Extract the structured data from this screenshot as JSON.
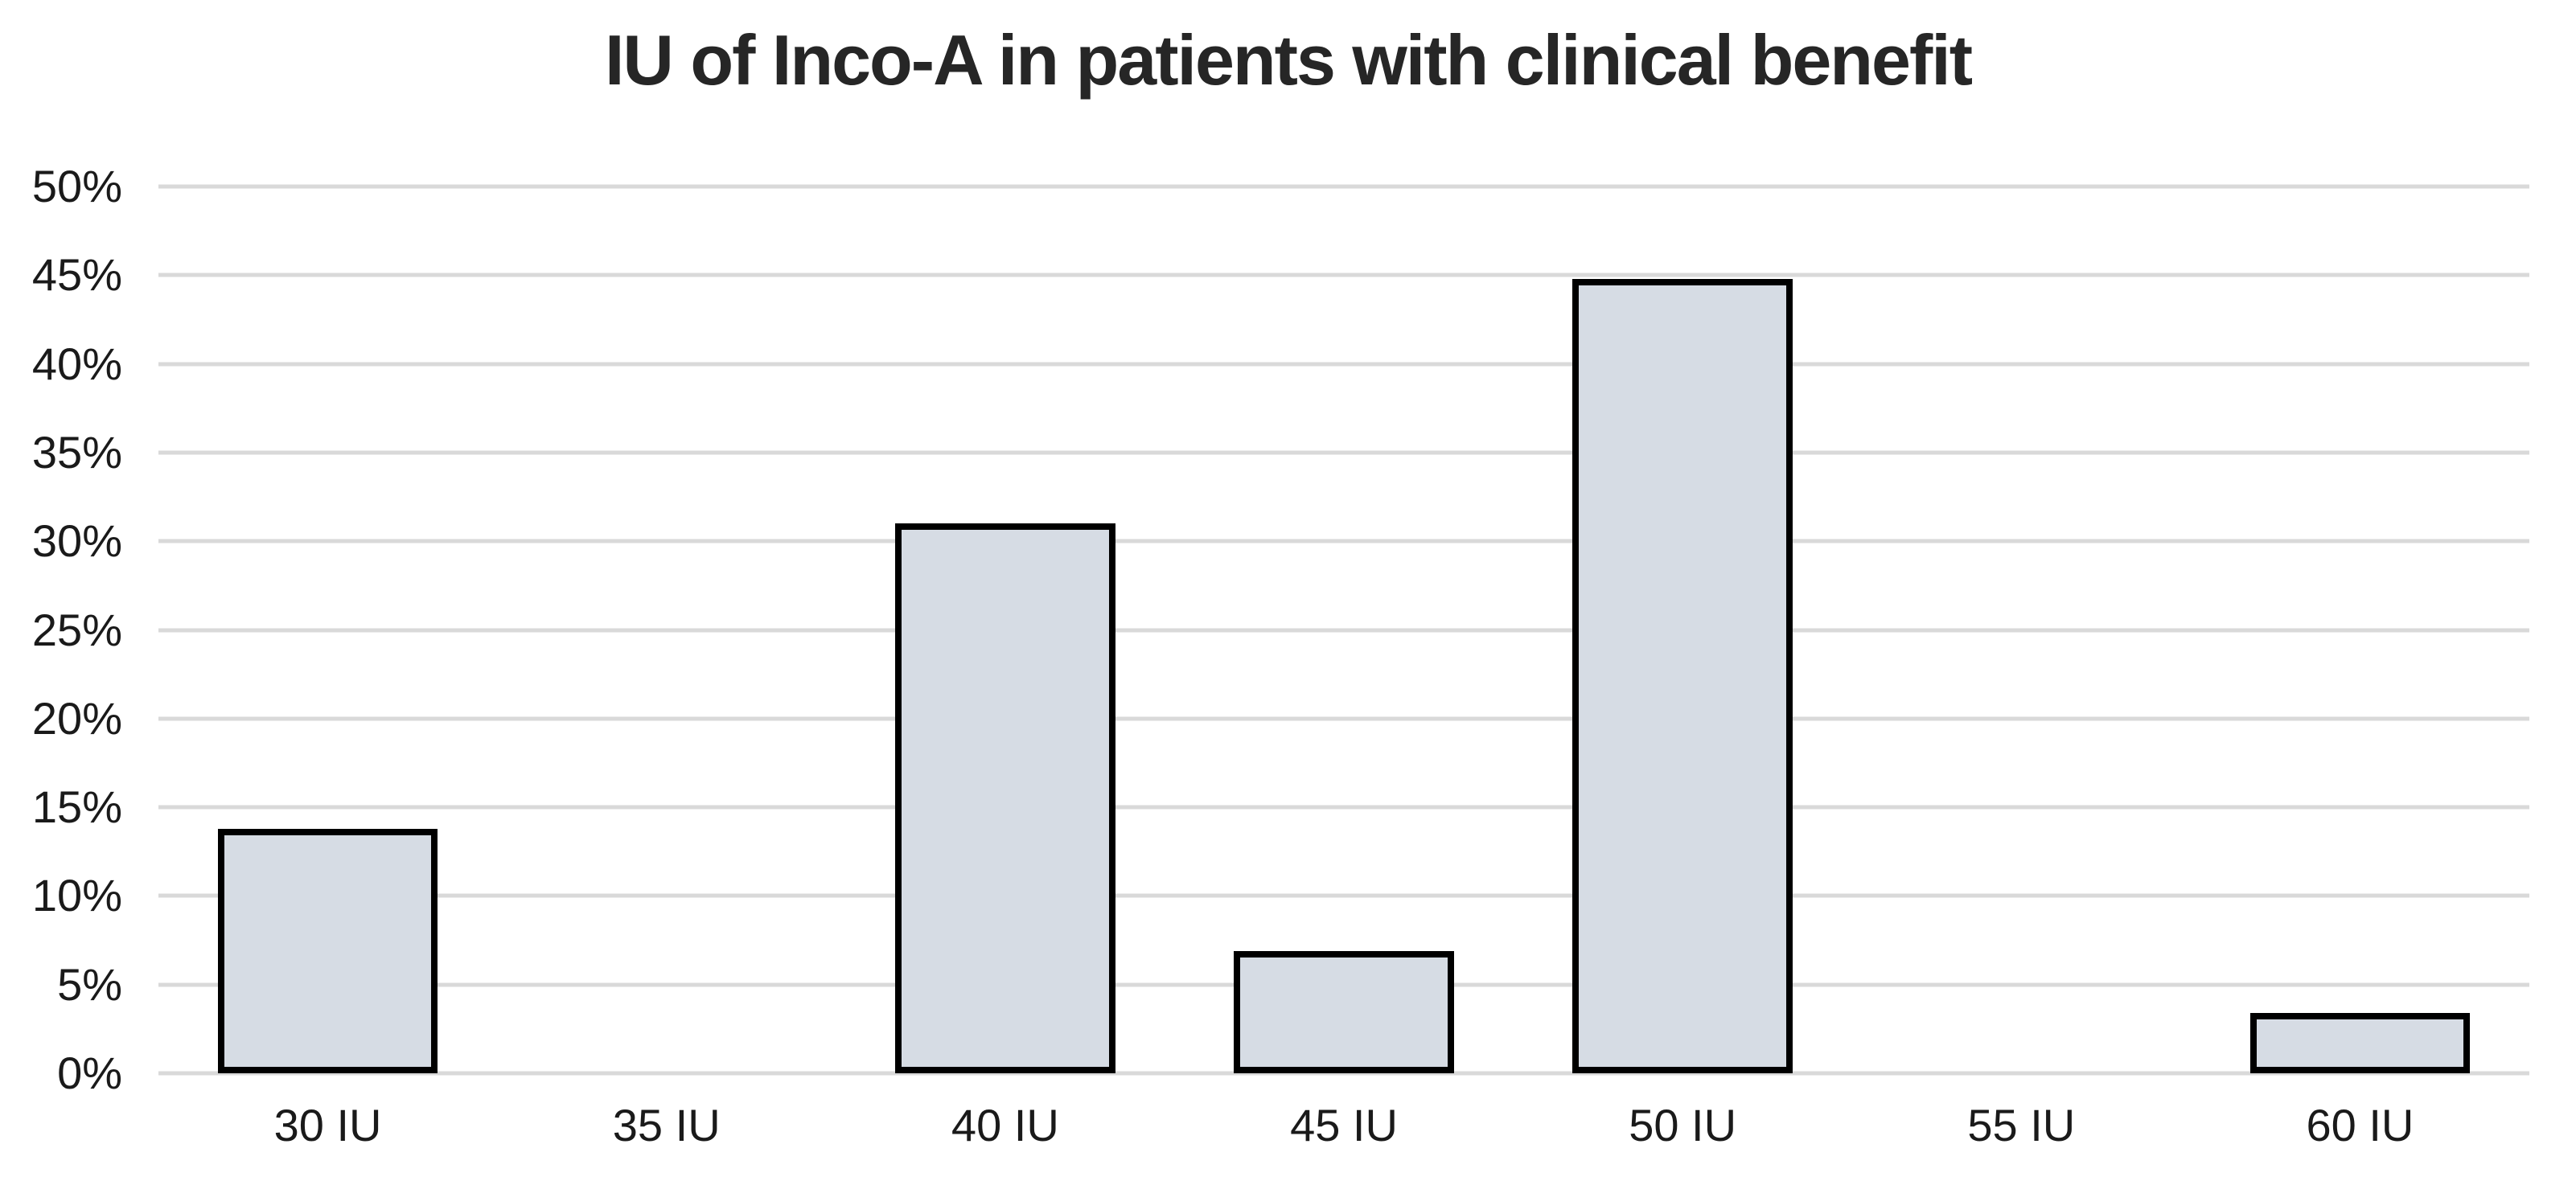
{
  "chart_data": {
    "type": "bar",
    "title": "IU of Inco-A in patients with clinical benefit",
    "categories": [
      "30 IU",
      "35 IU",
      "40 IU",
      "45 IU",
      "50 IU",
      "55 IU",
      "60 IU"
    ],
    "values": [
      13.8,
      0,
      31.0,
      6.9,
      44.8,
      0,
      3.4
    ],
    "value_unit": "%",
    "xlabel": "",
    "ylabel": "",
    "ylim": [
      0,
      50
    ],
    "ytick_step": 5,
    "ytick_labels": [
      "0%",
      "5%",
      "10%",
      "15%",
      "20%",
      "25%",
      "30%",
      "35%",
      "40%",
      "45%",
      "50%"
    ],
    "grid": "horizontal",
    "legend_position": "none",
    "bar_width_fraction": 0.65,
    "colors": {
      "bar_fill": "#d6dce4",
      "bar_border": "#000000",
      "gridline": "#d9d9d9",
      "title_text": "#262626",
      "tick_text": "#1a1a1a",
      "background": "#ffffff"
    }
  }
}
